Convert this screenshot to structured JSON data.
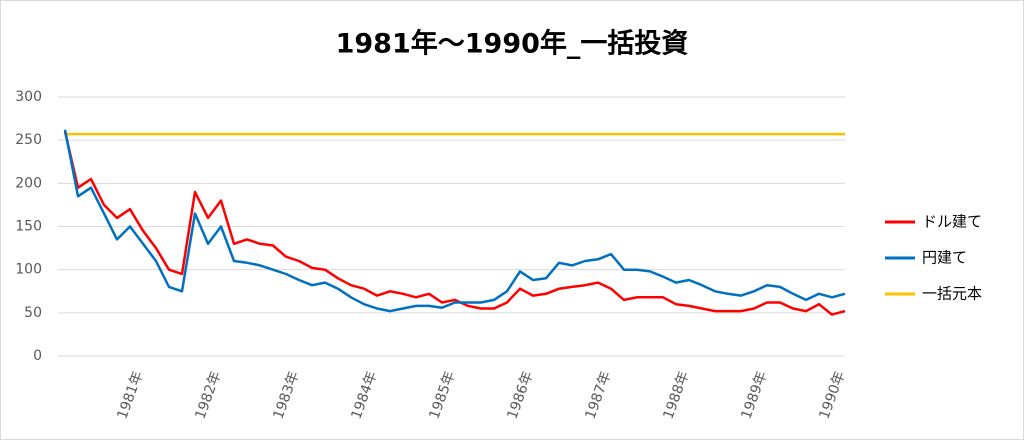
{
  "chart_data": {
    "type": "line",
    "title": "1981年～1990年_一括投資",
    "categories": [
      null,
      null,
      null,
      null,
      null,
      null,
      "1981年",
      null,
      null,
      null,
      null,
      null,
      "1982年",
      null,
      null,
      null,
      null,
      null,
      "1983年",
      null,
      null,
      null,
      null,
      null,
      "1984年",
      null,
      null,
      null,
      null,
      null,
      "1985年",
      null,
      null,
      null,
      null,
      null,
      "1986年",
      null,
      null,
      null,
      null,
      null,
      "1987年",
      null,
      null,
      null,
      null,
      null,
      "1988年",
      null,
      null,
      null,
      null,
      null,
      "1989年",
      null,
      null,
      null,
      null,
      null,
      "1990年"
    ],
    "series": [
      {
        "name": "ドル建て",
        "color": "#ff0000",
        "values": [
          260,
          195,
          205,
          175,
          160,
          170,
          145,
          125,
          100,
          95,
          190,
          160,
          180,
          130,
          135,
          130,
          128,
          115,
          110,
          102,
          100,
          90,
          82,
          78,
          70,
          75,
          72,
          68,
          72,
          62,
          65,
          58,
          55,
          55,
          62,
          78,
          70,
          72,
          78,
          80,
          82,
          85,
          78,
          65,
          68,
          68,
          68,
          60,
          58,
          55,
          52,
          52,
          52,
          55,
          62,
          62,
          55,
          52,
          60,
          48,
          52
        ]
      },
      {
        "name": "円建て",
        "color": "#0070c0",
        "values": [
          262,
          185,
          195,
          165,
          135,
          150,
          130,
          110,
          80,
          75,
          165,
          130,
          150,
          110,
          108,
          105,
          100,
          95,
          88,
          82,
          85,
          78,
          68,
          60,
          55,
          52,
          55,
          58,
          58,
          56,
          62,
          62,
          62,
          65,
          75,
          98,
          88,
          90,
          108,
          105,
          110,
          112,
          118,
          100,
          100,
          98,
          92,
          85,
          88,
          82,
          75,
          72,
          70,
          75,
          82,
          80,
          72,
          65,
          72,
          68,
          72
        ]
      },
      {
        "name": "一括元本",
        "color": "#ffc000",
        "values": [
          257,
          257,
          257,
          257,
          257,
          257,
          257,
          257,
          257,
          257,
          257,
          257,
          257,
          257,
          257,
          257,
          257,
          257,
          257,
          257,
          257,
          257,
          257,
          257,
          257,
          257,
          257,
          257,
          257,
          257,
          257,
          257,
          257,
          257,
          257,
          257,
          257,
          257,
          257,
          257,
          257,
          257,
          257,
          257,
          257,
          257,
          257,
          257,
          257,
          257,
          257,
          257,
          257,
          257,
          257,
          257,
          257,
          257,
          257,
          257,
          257
        ]
      }
    ],
    "ylim": [
      0,
      300
    ],
    "yticks": [
      0,
      50,
      100,
      150,
      200,
      250,
      300
    ],
    "grid": true,
    "legend": "right"
  }
}
